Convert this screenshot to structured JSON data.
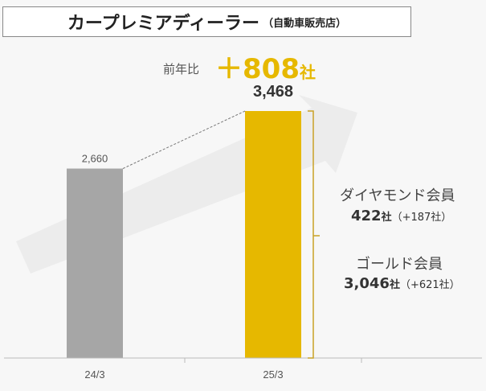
{
  "title": {
    "main": "カープレミアディーラー",
    "sub": "（自動車販売店）"
  },
  "yoy": {
    "label": "前年比",
    "value": "＋808",
    "unit": "社"
  },
  "segments": {
    "diamond": {
      "label": "ダイヤモンド会員",
      "value": "422",
      "unit": "社",
      "change": "（+187社）"
    },
    "gold": {
      "label": "ゴールド会員",
      "value": "3,046",
      "unit": "社",
      "change": "（+621社）"
    }
  },
  "chart_data": {
    "type": "bar",
    "categories": [
      "24/3",
      "25/3"
    ],
    "values": [
      2660,
      3468
    ],
    "value_labels": [
      "2,660",
      "3,468"
    ],
    "colors": [
      "#a6a6a6",
      "#e6b800"
    ],
    "ylim": [
      0,
      5000
    ],
    "title": "カープレミアディーラー（自動車販売店）"
  }
}
